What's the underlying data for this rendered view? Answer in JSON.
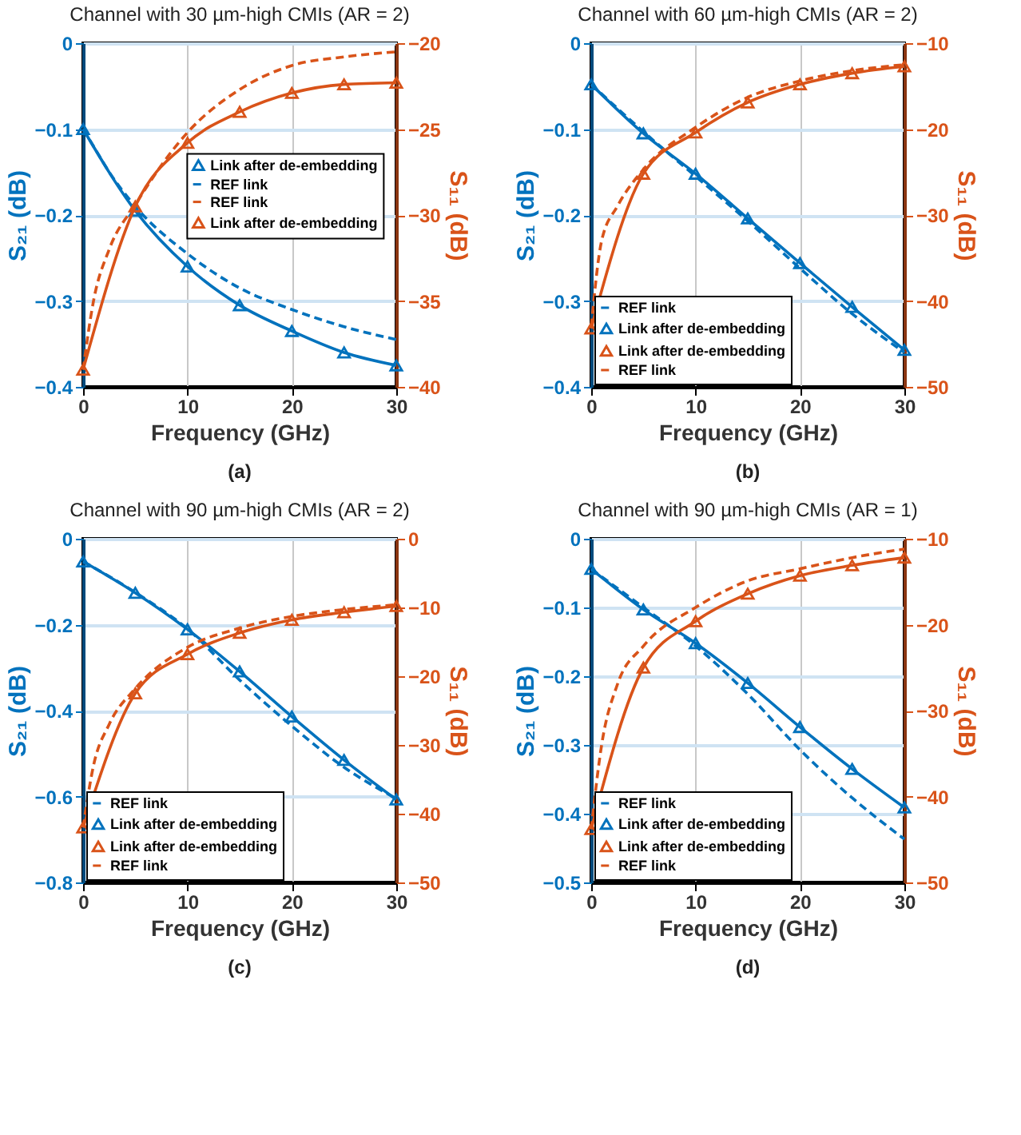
{
  "chart_data": [
    {
      "type": "line",
      "title": "Channel with 30 µm-high CMIs (AR = 2)",
      "xlabel": "Frequency (GHz)",
      "ylabel": "S₂₁ (dB)",
      "y2label": "S₁₁ (dB)",
      "annotations": [
        "(a)"
      ],
      "xlim": [
        0,
        30
      ],
      "xticks": [
        0,
        10,
        20,
        30
      ],
      "ylim": [
        -0.4,
        0
      ],
      "yticks": [
        -0.4,
        -0.3,
        -0.2,
        -0.1,
        0
      ],
      "y2lim": [
        -40,
        -20
      ],
      "y2ticks": [
        -40,
        -35,
        -30,
        -25,
        -20
      ],
      "grid": true,
      "legend": "right",
      "series": [
        {
          "name": "Link after de-embedding",
          "color": "#0072bd",
          "line_style": "solid",
          "marker": "triangle",
          "x": [
            0,
            5,
            10,
            15,
            20,
            25,
            30
          ],
          "values": [
            -0.1,
            -0.195,
            -0.26,
            -0.305,
            -0.335,
            -0.36,
            -0.375
          ]
        },
        {
          "name": "REF link",
          "color": "#0072bd",
          "line_style": "dashed",
          "x": [
            0,
            1,
            2.5,
            5,
            10,
            15,
            20,
            25,
            30
          ],
          "values": [
            -0.1,
            -0.12,
            -0.15,
            -0.19,
            -0.245,
            -0.285,
            -0.31,
            -0.33,
            -0.345
          ]
        },
        {
          "name": "REF link",
          "color": "#d95319",
          "axis": "y2",
          "line_style": "dashed",
          "x": [
            0,
            1,
            2.5,
            5,
            10,
            15,
            20,
            25,
            30
          ],
          "values": [
            -39,
            -35,
            -32,
            -29.4,
            -25.2,
            -22.7,
            -21.3,
            -20.8,
            -20.5
          ]
        },
        {
          "name": "Link after de-embedding",
          "color": "#d95319",
          "axis": "y2",
          "line_style": "solid",
          "marker": "triangle",
          "x": [
            0,
            5,
            10,
            15,
            20,
            25,
            30
          ],
          "values": [
            -39,
            -29.5,
            -25.8,
            -24,
            -22.9,
            -22.4,
            -22.3
          ]
        }
      ]
    },
    {
      "type": "line",
      "title": "Channel with 60 µm-high CMIs (AR = 2)",
      "xlabel": "Frequency (GHz)",
      "ylabel": "S₂₁ (dB)",
      "y2label": "S₁₁ (dB)",
      "annotations": [
        "(b)"
      ],
      "xlim": [
        0,
        30
      ],
      "xticks": [
        0,
        10,
        20,
        30
      ],
      "ylim": [
        -0.4,
        0
      ],
      "yticks": [
        -0.4,
        -0.3,
        -0.2,
        -0.1,
        0
      ],
      "y2lim": [
        -50,
        -10
      ],
      "y2ticks": [
        -50,
        -40,
        -30,
        -20,
        -10
      ],
      "grid": true,
      "legend": "bottom left",
      "series": [
        {
          "name": "REF link",
          "color": "#0072bd",
          "line_style": "dashed",
          "x": [
            0,
            5,
            10,
            15,
            20,
            25,
            30
          ],
          "values": [
            -0.048,
            -0.103,
            -0.155,
            -0.207,
            -0.262,
            -0.315,
            -0.36
          ]
        },
        {
          "name": "Link after de-embedding",
          "color": "#0072bd",
          "line_style": "solid",
          "marker": "triangle",
          "x": [
            0,
            5,
            10,
            15,
            20,
            25,
            30
          ],
          "values": [
            -0.048,
            -0.105,
            -0.152,
            -0.204,
            -0.256,
            -0.307,
            -0.357
          ]
        },
        {
          "name": "Link after de-embedding",
          "color": "#d95319",
          "axis": "y2",
          "line_style": "solid",
          "marker": "triangle",
          "x": [
            0,
            5,
            10,
            15,
            20,
            25,
            30
          ],
          "values": [
            -43.2,
            -25.2,
            -20.4,
            -16.9,
            -14.8,
            -13.5,
            -12.7
          ]
        },
        {
          "name": "REF link",
          "color": "#d95319",
          "axis": "y2",
          "line_style": "dashed",
          "x": [
            0,
            1,
            2.5,
            5,
            10,
            15,
            20,
            25,
            30
          ],
          "values": [
            -43,
            -33,
            -29,
            -24.7,
            -19.8,
            -16.3,
            -14.4,
            -13.2,
            -12.5
          ]
        }
      ]
    },
    {
      "type": "line",
      "title": "Channel with 90 µm-high CMIs (AR = 2)",
      "xlabel": "Frequency (GHz)",
      "ylabel": "S₂₁ (dB)",
      "y2label": "S₁₁ (dB)",
      "annotations": [
        "(c)"
      ],
      "xlim": [
        0,
        30
      ],
      "xticks": [
        0,
        10,
        20,
        30
      ],
      "ylim": [
        -0.8,
        0
      ],
      "yticks": [
        -0.8,
        -0.6,
        -0.4,
        -0.2,
        0
      ],
      "y2lim": [
        -50,
        0
      ],
      "y2ticks": [
        -50,
        -40,
        -30,
        -20,
        -10,
        0
      ],
      "grid": true,
      "legend": "bottom left",
      "series": [
        {
          "name": "REF link",
          "color": "#0072bd",
          "line_style": "dashed",
          "x": [
            0,
            5,
            10,
            15,
            20,
            25,
            30
          ],
          "values": [
            -0.053,
            -0.125,
            -0.21,
            -0.329,
            -0.436,
            -0.532,
            -0.605
          ]
        },
        {
          "name": "Link after de-embedding",
          "color": "#0072bd",
          "line_style": "solid",
          "marker": "triangle",
          "x": [
            0,
            5,
            10,
            15,
            20,
            25,
            30
          ],
          "values": [
            -0.053,
            -0.126,
            -0.211,
            -0.309,
            -0.414,
            -0.515,
            -0.607
          ]
        },
        {
          "name": "Link after de-embedding",
          "color": "#d95319",
          "axis": "y2",
          "line_style": "solid",
          "marker": "triangle",
          "x": [
            0,
            5,
            10,
            15,
            20,
            25,
            30
          ],
          "values": [
            -42,
            -22.5,
            -16.8,
            -13.7,
            -11.8,
            -10.7,
            -9.8
          ]
        },
        {
          "name": "REF link",
          "color": "#d95319",
          "axis": "y2",
          "line_style": "dashed",
          "x": [
            0,
            1,
            2.5,
            5,
            10,
            15,
            20,
            25,
            30
          ],
          "values": [
            -42,
            -33,
            -27,
            -21.8,
            -15.8,
            -13,
            -11.3,
            -10.3,
            -9.6
          ]
        }
      ]
    },
    {
      "type": "line",
      "title": "Channel with 90 µm-high CMIs (AR = 1)",
      "xlabel": "Frequency (GHz)",
      "ylabel": "S₂₁ (dB)",
      "y2label": "S₁₁ (dB)",
      "annotations": [
        "(d)"
      ],
      "xlim": [
        0,
        30
      ],
      "xticks": [
        0,
        10,
        20,
        30
      ],
      "ylim": [
        -0.5,
        0
      ],
      "yticks": [
        -0.5,
        -0.4,
        -0.3,
        -0.2,
        -0.1,
        0
      ],
      "y2lim": [
        -50,
        -10
      ],
      "y2ticks": [
        -50,
        -40,
        -30,
        -20,
        -10
      ],
      "grid": true,
      "legend": "bottom left",
      "series": [
        {
          "name": "REF link",
          "color": "#0072bd",
          "line_style": "dashed",
          "x": [
            0,
            5,
            10,
            15,
            20,
            25,
            30
          ],
          "values": [
            -0.044,
            -0.1,
            -0.156,
            -0.226,
            -0.307,
            -0.377,
            -0.437
          ]
        },
        {
          "name": "Link after de-embedding",
          "color": "#0072bd",
          "line_style": "solid",
          "marker": "triangle",
          "x": [
            0,
            5,
            10,
            15,
            20,
            25,
            30
          ],
          "values": [
            -0.044,
            -0.103,
            -0.152,
            -0.21,
            -0.274,
            -0.335,
            -0.391
          ]
        },
        {
          "name": "Link after de-embedding",
          "color": "#d95319",
          "axis": "y2",
          "line_style": "solid",
          "marker": "triangle",
          "x": [
            0,
            5,
            10,
            15,
            20,
            25,
            30
          ],
          "values": [
            -43.8,
            -25,
            -19.6,
            -16.4,
            -14.3,
            -13.1,
            -12.2
          ]
        },
        {
          "name": "REF link",
          "color": "#d95319",
          "axis": "y2",
          "line_style": "dashed",
          "x": [
            0,
            1,
            2.5,
            5,
            10,
            15,
            20,
            25,
            30
          ],
          "values": [
            -43.8,
            -34,
            -27,
            -22.5,
            -18,
            -14.9,
            -13.5,
            -12.2,
            -11.2
          ]
        }
      ]
    }
  ]
}
